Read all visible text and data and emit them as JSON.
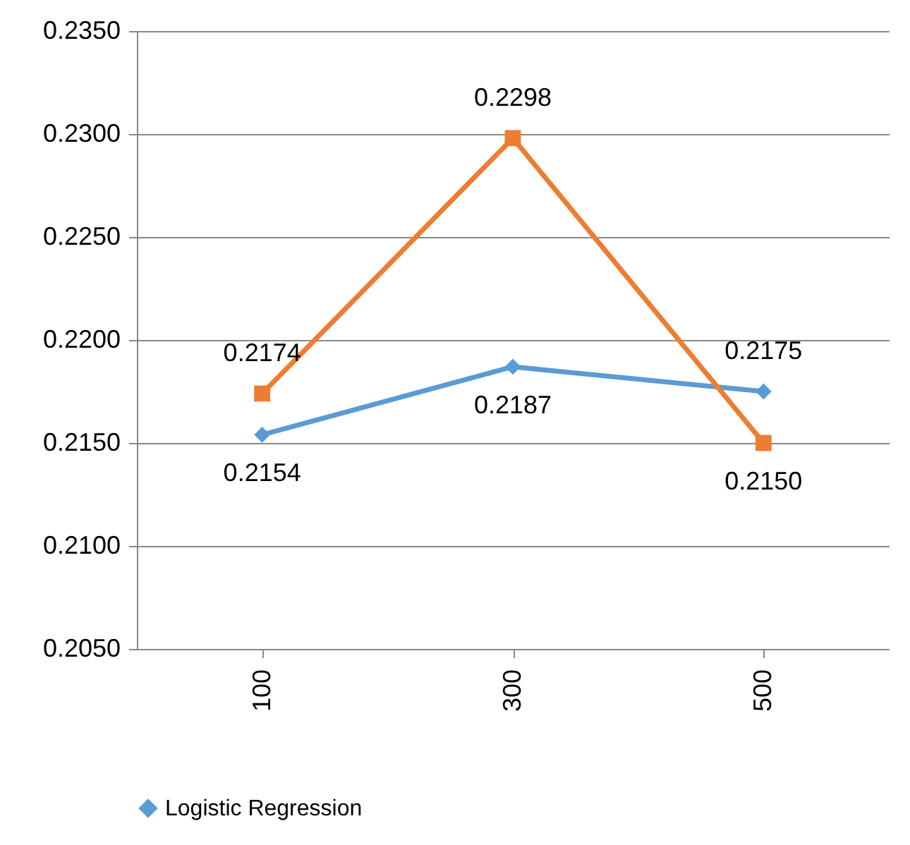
{
  "chart_data": {
    "type": "line",
    "categories": [
      "100",
      "300",
      "500"
    ],
    "series": [
      {
        "name": "Logistic Regression",
        "color": "#5b9bd5",
        "marker": "diamond",
        "values": [
          0.2154,
          0.2187,
          0.2175
        ],
        "value_labels": [
          "0.2154",
          "0.2187",
          "0.2175"
        ]
      },
      {
        "color": "#ed7d31",
        "marker": "square",
        "values": [
          0.2174,
          0.2298,
          0.215
        ],
        "value_labels": [
          "0.2174",
          "0.2298",
          "0.2150"
        ]
      }
    ],
    "ylim": [
      0.205,
      0.235
    ],
    "yticks": [
      {
        "value": 0.205,
        "label": "0.2050"
      },
      {
        "value": 0.21,
        "label": "0.2100"
      },
      {
        "value": 0.215,
        "label": "0.2150"
      },
      {
        "value": 0.22,
        "label": "0.2200"
      },
      {
        "value": 0.225,
        "label": "0.2250"
      },
      {
        "value": 0.23,
        "label": "0.2300"
      },
      {
        "value": 0.235,
        "label": "0.2350"
      }
    ],
    "grid": "y",
    "legend": "bottom",
    "line_style": "solid"
  }
}
